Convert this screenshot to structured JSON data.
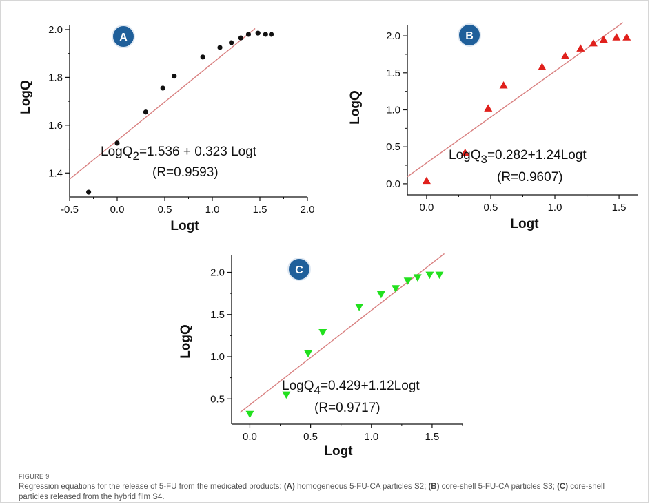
{
  "chart_data": [
    {
      "type": "scatter",
      "panel_label": "A",
      "xlabel": "Logt",
      "ylabel": "LogQ",
      "xlim": [
        -0.5,
        2.0
      ],
      "ylim": [
        1.3,
        2.02
      ],
      "xticks": [
        -0.5,
        0.0,
        0.5,
        1.0,
        1.5,
        2.0
      ],
      "yticks": [
        1.4,
        1.6,
        1.8,
        2.0
      ],
      "xtick_labels": [
        "-0.5",
        "0.0",
        "0.5",
        "1.0",
        "1.5",
        "2.0"
      ],
      "ytick_labels": [
        "1.4",
        "1.6",
        "1.8",
        "2.0"
      ],
      "marker": "circle",
      "point_color": "#111111",
      "line_color": "#d98080",
      "fit": {
        "intercept": 1.536,
        "slope": 0.323,
        "x_range": [
          -0.5,
          1.45
        ]
      },
      "equation": {
        "prefix": "LogQ",
        "subscript": "2",
        "rest": "=1.536 + 0.323 Logt",
        "r": "(R=0.9593)"
      },
      "x": [
        -0.3,
        0.0,
        0.3,
        0.48,
        0.6,
        0.9,
        1.08,
        1.2,
        1.3,
        1.38,
        1.48,
        1.56,
        1.62
      ],
      "y": [
        1.32,
        1.525,
        1.655,
        1.755,
        1.805,
        1.885,
        1.925,
        1.945,
        1.965,
        1.98,
        1.985,
        1.98,
        1.98
      ]
    },
    {
      "type": "scatter",
      "panel_label": "B",
      "xlabel": "Logt",
      "ylabel": "LogQ",
      "xlim": [
        -0.15,
        1.65
      ],
      "ylim": [
        -0.15,
        2.15
      ],
      "xticks": [
        0.0,
        0.5,
        1.0,
        1.5
      ],
      "yticks": [
        0.0,
        0.5,
        1.0,
        1.5,
        2.0
      ],
      "xtick_labels": [
        "0.0",
        "0.5",
        "1.0",
        "1.5"
      ],
      "ytick_labels": [
        "0.0",
        "0.5",
        "1.0",
        "1.5",
        "2.0"
      ],
      "marker": "triangle-up",
      "point_color": "#e0201c",
      "line_color": "#d98080",
      "fit": {
        "intercept": 0.282,
        "slope": 1.24,
        "x_range": [
          -0.15,
          1.53
        ]
      },
      "equation": {
        "prefix": "LogQ",
        "subscript": "3",
        "rest": "=0.282+1.24Logt",
        "r": "(R=0.9607)"
      },
      "x": [
        0.0,
        0.3,
        0.48,
        0.6,
        0.9,
        1.08,
        1.2,
        1.3,
        1.38,
        1.48,
        1.56
      ],
      "y": [
        0.04,
        0.42,
        1.02,
        1.33,
        1.58,
        1.73,
        1.83,
        1.9,
        1.95,
        1.98,
        1.98
      ]
    },
    {
      "type": "scatter",
      "panel_label": "C",
      "xlabel": "Logt",
      "ylabel": "LogQ",
      "xlim": [
        -0.15,
        1.75
      ],
      "ylim": [
        0.2,
        2.2
      ],
      "xticks": [
        0.0,
        0.5,
        1.0,
        1.5
      ],
      "yticks": [
        0.5,
        1.0,
        1.5,
        2.0
      ],
      "xtick_labels": [
        "0.0",
        "0.5",
        "1.0",
        "1.5"
      ],
      "ytick_labels": [
        "0.5",
        "1.0",
        "1.5",
        "2.0"
      ],
      "marker": "triangle-down",
      "point_color": "#22e01e",
      "line_color": "#d98080",
      "fit": {
        "intercept": 0.429,
        "slope": 1.12,
        "x_range": [
          -0.08,
          1.6
        ]
      },
      "equation": {
        "prefix": "LogQ",
        "subscript": "4",
        "rest": "=0.429+1.12Logt",
        "r": "(R=0.9717)"
      },
      "x": [
        0.0,
        0.3,
        0.48,
        0.6,
        0.9,
        1.08,
        1.2,
        1.3,
        1.38,
        1.48,
        1.56
      ],
      "y": [
        0.32,
        0.55,
        1.04,
        1.29,
        1.59,
        1.74,
        1.81,
        1.9,
        1.94,
        1.97,
        1.97
      ]
    }
  ],
  "badge_color": "#1f5f9a",
  "caption": {
    "label": "FIGURE 9",
    "intro": "Regression equations for the release of 5-FU from the medicated products: ",
    "a_tag": "(A)",
    "a_text": " homogeneous 5-FU-CA particles S2; ",
    "b_tag": "(B)",
    "b_text": " core-shell 5-FU-CA particles S3; ",
    "c_tag": "(C)",
    "c_text": " core-shell particles released from the hybrid film S4."
  }
}
